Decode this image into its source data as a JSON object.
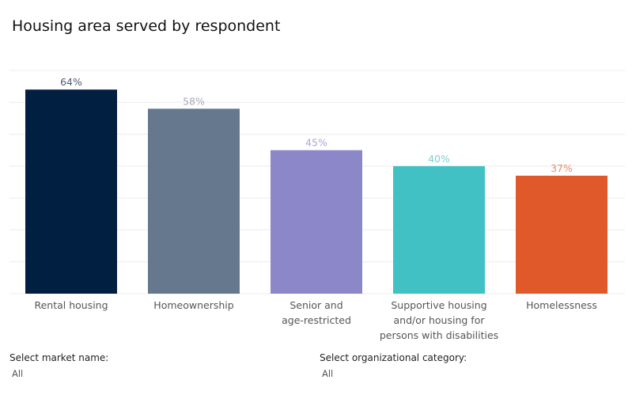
{
  "title": "Housing area served by respondent",
  "chart_data": {
    "type": "bar",
    "categories": [
      [
        "Rental housing"
      ],
      [
        "Homeownership"
      ],
      [
        "Senior and",
        "age-restricted"
      ],
      [
        "Supportive housing",
        "and/or housing for",
        "persons with disabilities"
      ],
      [
        "Homelessness"
      ]
    ],
    "values": [
      64,
      58,
      45,
      40,
      37
    ],
    "value_labels": [
      "64%",
      "58%",
      "45%",
      "40%",
      "37%"
    ],
    "colors": [
      "#011f40",
      "#66788e",
      "#8b87c9",
      "#41c1c3",
      "#e0592b"
    ],
    "label_colors": [
      "#4a5d75",
      "#a4acb8",
      "#a9a7d6",
      "#79d0d3",
      "#e98a67"
    ],
    "ylim": [
      0,
      70
    ],
    "grid": true
  },
  "filters": {
    "market": {
      "label": "Select market name:",
      "value": "All"
    },
    "category": {
      "label": "Select organizational category:",
      "value": "All"
    }
  }
}
